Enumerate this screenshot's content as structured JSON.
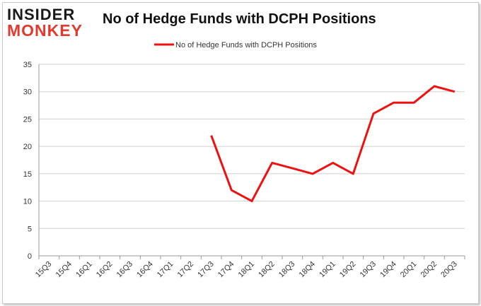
{
  "logo": {
    "line1": "INSIDER",
    "line2": "MONKEY"
  },
  "chart_data": {
    "type": "line",
    "title": "No of Hedge Funds with DCPH Positions",
    "xlabel": "",
    "ylabel": "",
    "categories": [
      "15Q3",
      "15Q4",
      "16Q1",
      "16Q2",
      "16Q3",
      "16Q4",
      "17Q1",
      "17Q2",
      "17Q3",
      "17Q4",
      "18Q1",
      "18Q2",
      "18Q3",
      "18Q4",
      "19Q1",
      "19Q2",
      "19Q3",
      "19Q4",
      "20Q1",
      "20Q2",
      "20Q3"
    ],
    "series": [
      {
        "name": "No of Hedge Funds with DCPH Positions",
        "color": "#ee1111",
        "values": [
          null,
          null,
          null,
          null,
          null,
          null,
          null,
          null,
          22,
          12,
          10,
          17,
          16,
          15,
          17,
          15,
          26,
          28,
          28,
          31,
          30
        ]
      }
    ],
    "ylim": [
      0,
      35
    ],
    "yticks": [
      0,
      5,
      10,
      15,
      20,
      25,
      30,
      35
    ],
    "grid": true,
    "legend": "top-center"
  }
}
